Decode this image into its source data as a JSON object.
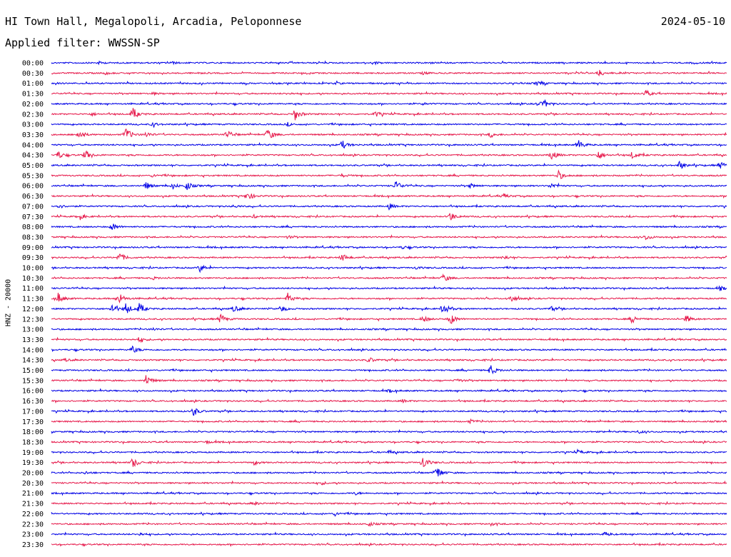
{
  "header": {
    "station": "HI Town Hall, Megalopoli, Arcadia, Peloponnese",
    "date": "2024-05-10",
    "filter": "Applied filter: WWSSN-SP"
  },
  "chart_data": {
    "type": "line",
    "title": "HI Town Hall, Megalopoli, Arcadia, Peloponnese",
    "ylabel": "HNZ - 20000",
    "colors": {
      "odd_rows": "#0000e6",
      "even_rows": "#e6194b"
    },
    "rows": [
      {
        "label": "00:00",
        "color": "#0000e6",
        "events": [
          [
            0.07,
            0.15
          ],
          [
            0.18,
            0.12
          ],
          [
            0.48,
            0.12
          ],
          [
            0.95,
            0.15
          ]
        ]
      },
      {
        "label": "00:30",
        "color": "#e6194b",
        "events": [
          [
            0.08,
            0.15
          ],
          [
            0.81,
            0.55
          ],
          [
            0.55,
            0.15
          ]
        ]
      },
      {
        "label": "01:00",
        "color": "#0000e6",
        "events": [
          [
            0.72,
            0.4
          ],
          [
            0.42,
            0.12
          ]
        ]
      },
      {
        "label": "01:30",
        "color": "#e6194b",
        "events": [
          [
            0.15,
            0.15
          ],
          [
            0.88,
            0.45
          ],
          [
            0.35,
            0.12
          ]
        ]
      },
      {
        "label": "02:00",
        "color": "#0000e6",
        "events": [
          [
            0.72,
            0.3
          ],
          [
            0.73,
            0.45
          ],
          [
            0.55,
            0.12
          ]
        ]
      },
      {
        "label": "02:30",
        "color": "#e6194b",
        "events": [
          [
            0.12,
            0.9
          ],
          [
            0.36,
            0.95
          ],
          [
            0.48,
            0.4
          ],
          [
            0.06,
            0.2
          ]
        ]
      },
      {
        "label": "03:00",
        "color": "#0000e6",
        "events": [
          [
            0.15,
            0.3
          ],
          [
            0.35,
            0.2
          ]
        ]
      },
      {
        "label": "03:30",
        "color": "#e6194b",
        "events": [
          [
            0.04,
            0.7
          ],
          [
            0.11,
            1.0
          ],
          [
            0.14,
            0.4
          ],
          [
            0.26,
            0.6
          ],
          [
            0.32,
            0.95
          ],
          [
            0.65,
            0.4
          ]
        ]
      },
      {
        "label": "04:00",
        "color": "#0000e6",
        "events": [
          [
            0.43,
            0.65
          ],
          [
            0.78,
            0.7
          ]
        ]
      },
      {
        "label": "04:30",
        "color": "#e6194b",
        "events": [
          [
            0.01,
            0.55
          ],
          [
            0.05,
            0.7
          ],
          [
            0.74,
            0.8
          ],
          [
            0.81,
            0.7
          ],
          [
            0.86,
            0.55
          ]
        ]
      },
      {
        "label": "05:00",
        "color": "#0000e6",
        "events": [
          [
            0.93,
            0.6
          ],
          [
            0.99,
            0.55
          ]
        ]
      },
      {
        "label": "05:30",
        "color": "#e6194b",
        "events": [
          [
            0.75,
            0.75
          ],
          [
            0.15,
            0.2
          ],
          [
            0.43,
            0.2
          ]
        ]
      },
      {
        "label": "06:00",
        "color": "#0000e6",
        "events": [
          [
            0.14,
            0.55
          ],
          [
            0.18,
            0.4
          ],
          [
            0.2,
            0.65
          ],
          [
            0.51,
            0.75
          ],
          [
            0.62,
            0.3
          ],
          [
            0.74,
            0.35
          ]
        ]
      },
      {
        "label": "06:30",
        "color": "#e6194b",
        "events": [
          [
            0.29,
            0.7
          ],
          [
            0.67,
            0.3
          ]
        ]
      },
      {
        "label": "07:00",
        "color": "#0000e6",
        "events": [
          [
            0.01,
            0.3
          ],
          [
            0.5,
            0.4
          ],
          [
            0.27,
            0.2
          ]
        ]
      },
      {
        "label": "07:30",
        "color": "#e6194b",
        "events": [
          [
            0.04,
            0.45
          ],
          [
            0.59,
            0.7
          ],
          [
            0.3,
            0.2
          ]
        ]
      },
      {
        "label": "08:00",
        "color": "#0000e6",
        "events": [
          [
            0.09,
            0.55
          ]
        ]
      },
      {
        "label": "08:30",
        "color": "#e6194b",
        "events": [
          [
            0.88,
            0.4
          ],
          [
            0.35,
            0.2
          ]
        ]
      },
      {
        "label": "09:00",
        "color": "#0000e6",
        "events": [
          [
            0.52,
            0.2
          ]
        ]
      },
      {
        "label": "09:30",
        "color": "#e6194b",
        "events": [
          [
            0.1,
            0.75
          ],
          [
            0.43,
            0.6
          ],
          [
            0.67,
            0.3
          ]
        ]
      },
      {
        "label": "10:00",
        "color": "#0000e6",
        "events": [
          [
            0.22,
            0.55
          ],
          [
            0.54,
            0.2
          ]
        ]
      },
      {
        "label": "10:30",
        "color": "#e6194b",
        "events": [
          [
            0.58,
            0.6
          ],
          [
            0.15,
            0.2
          ]
        ]
      },
      {
        "label": "11:00",
        "color": "#0000e6",
        "events": [
          [
            0.99,
            0.3
          ]
        ]
      },
      {
        "label": "11:30",
        "color": "#e6194b",
        "events": [
          [
            0.01,
            0.75
          ],
          [
            0.1,
            0.8
          ],
          [
            0.35,
            0.75
          ],
          [
            0.68,
            0.55
          ]
        ]
      },
      {
        "label": "12:00",
        "color": "#0000e6",
        "events": [
          [
            0.09,
            0.7
          ],
          [
            0.11,
            0.85
          ],
          [
            0.13,
            0.7
          ],
          [
            0.27,
            0.5
          ],
          [
            0.34,
            0.45
          ],
          [
            0.58,
            0.9
          ],
          [
            0.74,
            0.3
          ]
        ]
      },
      {
        "label": "12:30",
        "color": "#e6194b",
        "events": [
          [
            0.25,
            0.75
          ],
          [
            0.55,
            0.5
          ],
          [
            0.59,
            0.9
          ],
          [
            0.86,
            0.65
          ],
          [
            0.94,
            0.55
          ]
        ]
      },
      {
        "label": "13:00",
        "color": "#0000e6",
        "events": [
          [
            0.15,
            0.2
          ]
        ]
      },
      {
        "label": "13:30",
        "color": "#e6194b",
        "events": [
          [
            0.13,
            0.4
          ]
        ]
      },
      {
        "label": "14:00",
        "color": "#0000e6",
        "events": [
          [
            0.12,
            0.5
          ]
        ]
      },
      {
        "label": "14:30",
        "color": "#e6194b",
        "events": [
          [
            0.47,
            0.4
          ],
          [
            0.02,
            0.2
          ]
        ]
      },
      {
        "label": "15:00",
        "color": "#0000e6",
        "events": [
          [
            0.65,
            0.75
          ]
        ]
      },
      {
        "label": "15:30",
        "color": "#e6194b",
        "events": [
          [
            0.14,
            0.8
          ],
          [
            0.6,
            0.25
          ]
        ]
      },
      {
        "label": "16:00",
        "color": "#0000e6",
        "events": [
          [
            0.5,
            0.2
          ]
        ]
      },
      {
        "label": "16:30",
        "color": "#e6194b",
        "events": [
          [
            0.52,
            0.2
          ]
        ]
      },
      {
        "label": "17:00",
        "color": "#0000e6",
        "events": [
          [
            0.21,
            0.7
          ]
        ]
      },
      {
        "label": "17:30",
        "color": "#e6194b",
        "events": [
          [
            0.62,
            0.25
          ]
        ]
      },
      {
        "label": "18:00",
        "color": "#0000e6",
        "events": [
          [
            0.87,
            0.2
          ]
        ]
      },
      {
        "label": "18:30",
        "color": "#e6194b",
        "events": [
          [
            0.23,
            0.2
          ]
        ]
      },
      {
        "label": "19:00",
        "color": "#0000e6",
        "events": [
          [
            0.5,
            0.2
          ],
          [
            0.78,
            0.25
          ]
        ]
      },
      {
        "label": "19:30",
        "color": "#e6194b",
        "events": [
          [
            0.12,
            0.75
          ],
          [
            0.55,
            1.0
          ],
          [
            0.3,
            0.3
          ]
        ]
      },
      {
        "label": "20:00",
        "color": "#0000e6",
        "events": [
          [
            0.57,
            1.0
          ],
          [
            0.05,
            0.2
          ]
        ]
      },
      {
        "label": "20:30",
        "color": "#e6194b",
        "events": [
          [
            0.4,
            0.2
          ]
        ]
      },
      {
        "label": "21:00",
        "color": "#0000e6",
        "events": [
          [
            0.45,
            0.2
          ]
        ]
      },
      {
        "label": "21:30",
        "color": "#e6194b",
        "events": [
          [
            0.3,
            0.2
          ]
        ]
      },
      {
        "label": "22:00",
        "color": "#0000e6",
        "events": [
          [
            0.42,
            0.25
          ]
        ]
      },
      {
        "label": "22:30",
        "color": "#e6194b",
        "events": [
          [
            0.47,
            0.3
          ],
          [
            0.65,
            0.2
          ]
        ]
      },
      {
        "label": "23:00",
        "color": "#0000e6",
        "events": [
          [
            0.13,
            0.2
          ],
          [
            0.82,
            0.3
          ]
        ]
      },
      {
        "label": "23:30",
        "color": "#e6194b",
        "events": []
      }
    ]
  }
}
